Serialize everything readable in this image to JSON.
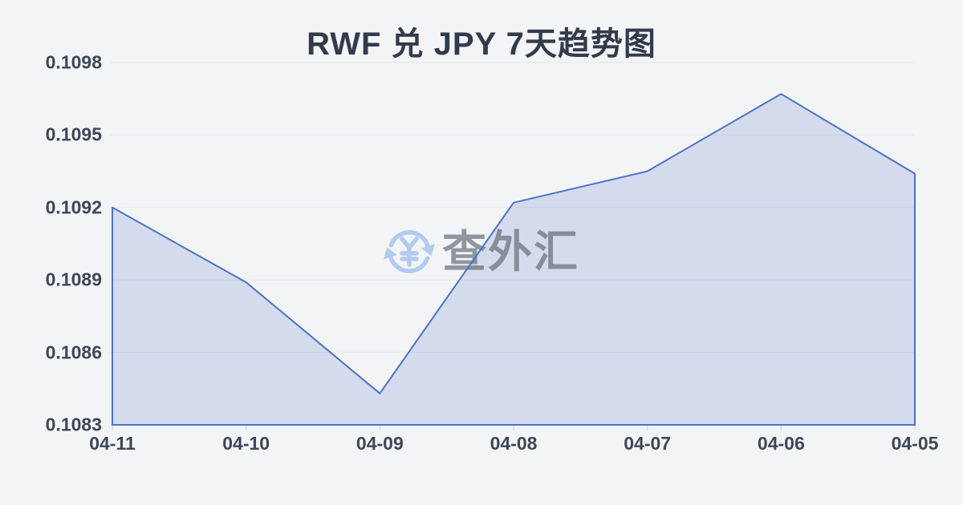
{
  "page": {
    "background_color": "#f3f4f6"
  },
  "header": {
    "title": "RWF 兑 JPY 7天趋势图",
    "title_color": "#323b4c"
  },
  "watermark": {
    "brand_text": "查外汇",
    "logo_icon": "currency-exchange-circular-arrows-yen",
    "logo_color": "#a6c4ef",
    "text_color": "#626a76"
  },
  "chart_data": {
    "type": "area",
    "title": "RWF 兑 JPY 7天趋势图",
    "categories": [
      "04-11",
      "04-10",
      "04-09",
      "04-08",
      "04-07",
      "04-06",
      "04-05"
    ],
    "series": [
      {
        "name": "RWF/JPY",
        "values": [
          0.1092,
          0.10889,
          0.10843,
          0.10922,
          0.10935,
          0.10967,
          0.10934
        ]
      }
    ],
    "xlabel": "",
    "ylabel": "",
    "ylim": [
      0.1083,
      0.1098
    ],
    "y_ticks": [
      0.1098,
      0.1095,
      0.1092,
      0.1089,
      0.1086,
      0.1083
    ],
    "y_tick_decimals": 4,
    "grid": "horizontal",
    "legend": "none",
    "line_color": "#4a74c9",
    "line_width": 2,
    "fill_color": "rgba(86,120,199,0.20)",
    "gridline_color": "#e5e7ea",
    "tick_color": "#ccd0d7",
    "axis_label_color": "#3e4757"
  }
}
